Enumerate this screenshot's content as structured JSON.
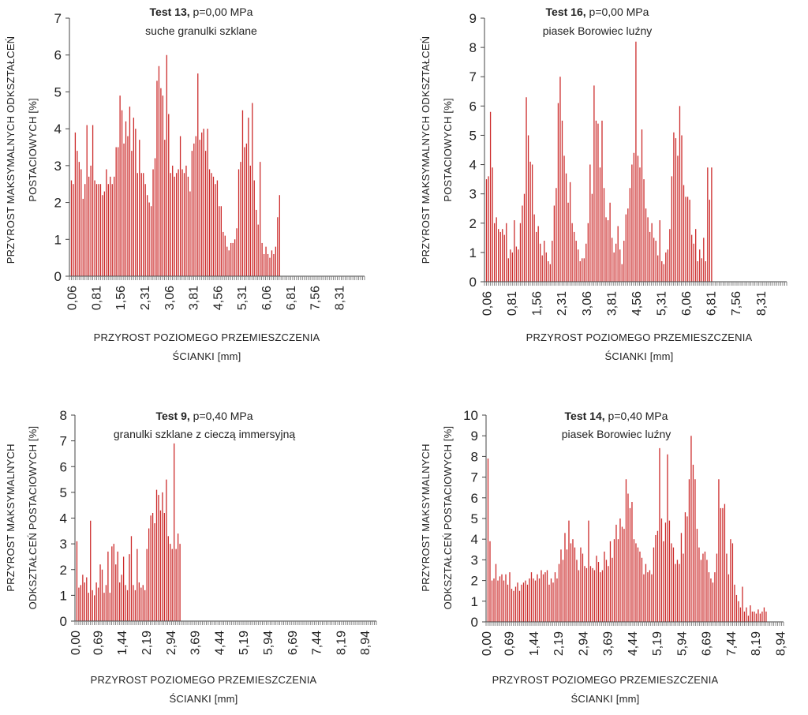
{
  "colors": {
    "bar": "#cc2b2b",
    "axis": "#444444",
    "text": "#222222"
  },
  "chart_data": [
    {
      "type": "bar",
      "title_bold": "Test 13,",
      "title_rest": " p=0,00 MPa",
      "subtitle": "suche granulki szklane",
      "ylabel_lines": [
        "PRZYROST MAKSYMALNYCH ODKSZTAŁCEŃ",
        "POSTACIOWYCH [%]"
      ],
      "xlabel_lines": [
        "PRZYROST POZIOMEGO PRZEMIESZCZENIA",
        "ŚCIANKI [mm]"
      ],
      "ylim": [
        0,
        7
      ],
      "yticks": [
        "0",
        "1",
        "2",
        "3",
        "4",
        "5",
        "6",
        "7"
      ],
      "xlim": [
        0,
        9.1
      ],
      "xtick_values": [
        0.06,
        0.81,
        1.56,
        2.31,
        3.06,
        3.81,
        4.56,
        5.31,
        6.06,
        6.81,
        7.56,
        8.31
      ],
      "xtick_labels": [
        "0,06",
        "0,81",
        "1,56",
        "2,31",
        "3,06",
        "3,81",
        "4,56",
        "5,31",
        "6,06",
        "6,81",
        "7,56",
        "8,31"
      ],
      "x_step": 0.06,
      "values": [
        2.6,
        2.5,
        3.9,
        3.4,
        3.1,
        2.9,
        2.1,
        2.5,
        4.1,
        2.7,
        3.0,
        4.1,
        2.6,
        2.5,
        2.5,
        2.5,
        2.2,
        2.3,
        2.9,
        2.5,
        2.7,
        2.5,
        2.7,
        3.5,
        3.5,
        4.9,
        4.5,
        3.6,
        4.2,
        3.8,
        4.6,
        3.4,
        4.3,
        4.0,
        2.8,
        3.7,
        2.8,
        2.8,
        2.5,
        2.2,
        2.0,
        1.9,
        2.9,
        3.2,
        5.3,
        5.7,
        5.1,
        4.9,
        3.7,
        6.0,
        4.4,
        2.8,
        3.0,
        2.7,
        2.8,
        2.9,
        3.8,
        2.9,
        2.8,
        3.0,
        2.7,
        2.3,
        3.4,
        3.6,
        3.8,
        5.5,
        3.7,
        3.9,
        4.0,
        3.4,
        4.0,
        2.9,
        2.8,
        2.7,
        2.5,
        2.6,
        1.9,
        1.9,
        1.2,
        1.1,
        0.8,
        0.7,
        0.9,
        0.9,
        1.0,
        1.3,
        2.9,
        3.1,
        4.5,
        3.5,
        3.6,
        4.3,
        3.0,
        4.7,
        2.6,
        1.8,
        1.4,
        3.1,
        0.9,
        0.6,
        0.8,
        0.6,
        0.5,
        0.7,
        0.6,
        0.8,
        1.6,
        2.2
      ],
      "n_ticks_total": 152
    },
    {
      "type": "bar",
      "title_bold": "Test 16,",
      "title_rest": " p=0,00 MPa",
      "subtitle": "piasek Borowiec luźny",
      "ylabel_lines": [
        "PRZYROST MAKSYMALNYCH ODKSZTAŁCEŃ",
        "POSTACIOWYCH [%]"
      ],
      "xlabel_lines": [
        "PRZYROST POZIOMEGO PRZEMIESZCZENIA",
        "ŚCIANKI [mm]"
      ],
      "ylim": [
        0,
        9
      ],
      "yticks": [
        "0",
        "1",
        "2",
        "3",
        "4",
        "5",
        "6",
        "7",
        "8",
        "9"
      ],
      "xlim": [
        0,
        9.1
      ],
      "xtick_values": [
        0.06,
        0.81,
        1.56,
        2.31,
        3.06,
        3.81,
        4.56,
        5.31,
        6.06,
        6.81,
        7.56,
        8.31
      ],
      "xtick_labels": [
        "0,06",
        "0,81",
        "1,56",
        "2,31",
        "3,06",
        "3,81",
        "4,56",
        "5,31",
        "6,06",
        "6,81",
        "7,56",
        "8,31"
      ],
      "x_step": 0.06,
      "values": [
        3.5,
        3.6,
        5.8,
        3.9,
        2.0,
        2.2,
        1.8,
        1.7,
        1.8,
        1.6,
        2.0,
        0.8,
        1.1,
        1.0,
        2.1,
        1.2,
        1.1,
        2.0,
        2.6,
        3.0,
        6.3,
        5.0,
        4.1,
        4.0,
        2.3,
        1.7,
        1.9,
        1.3,
        0.9,
        1.4,
        1.0,
        0.7,
        0.6,
        1.4,
        2.6,
        3.2,
        6.1,
        7.0,
        5.5,
        4.3,
        3.7,
        2.7,
        3.4,
        2.0,
        1.7,
        1.4,
        1.1,
        0.7,
        0.8,
        0.8,
        1.3,
        2.0,
        4.0,
        3.0,
        6.7,
        5.5,
        5.4,
        3.9,
        5.5,
        3.2,
        2.2,
        2.1,
        2.7,
        1.5,
        1.0,
        1.3,
        1.9,
        1.1,
        0.6,
        1.4,
        2.3,
        2.5,
        3.2,
        4.0,
        4.4,
        8.2,
        4.3,
        3.9,
        5.2,
        3.5,
        2.5,
        2.2,
        1.7,
        2.0,
        1.5,
        1.4,
        0.9,
        2.1,
        0.7,
        0.6,
        1.0,
        1.1,
        1.8,
        3.6,
        5.1,
        4.9,
        4.3,
        6.0,
        5.0,
        3.3,
        2.9,
        2.9,
        2.8,
        1.6,
        1.3,
        1.8,
        0.7,
        1.1,
        0.8,
        1.5,
        0.7,
        3.9,
        2.8,
        3.9
      ],
      "n_ticks_total": 152
    },
    {
      "type": "bar",
      "title_bold": "Test 9,",
      "title_rest": " p=0,40 MPa",
      "subtitle": "granulki szklane z cieczą immersyjną",
      "ylabel_lines": [
        "PRZYROST MAKSYMALNYCH",
        "ODKSZTAŁCEŃ POSTACIOWYCH [%]"
      ],
      "xlabel_lines": [
        "PRZYROST POZIOMEGO PRZEMIESZCZENIA",
        "ŚCIANKI [mm]"
      ],
      "ylim": [
        0,
        8
      ],
      "yticks": [
        "0",
        "1",
        "2",
        "3",
        "4",
        "5",
        "6",
        "7",
        "8"
      ],
      "xlim": [
        0,
        9.3
      ],
      "xtick_values": [
        0.0,
        0.69,
        1.44,
        2.19,
        2.94,
        3.69,
        4.44,
        5.19,
        5.94,
        6.69,
        7.44,
        8.19,
        8.94
      ],
      "xtick_labels": [
        "0,00",
        "0,69",
        "1,44",
        "2,19",
        "2,94",
        "3,69",
        "4,44",
        "5,19",
        "5,94",
        "6,69",
        "7,44",
        "8,19",
        "8,94"
      ],
      "x_step": 0.06,
      "values": [
        3.1,
        1.3,
        1.4,
        1.8,
        1.5,
        1.7,
        1.1,
        3.9,
        1.2,
        1.0,
        1.5,
        1.3,
        2.2,
        2.0,
        1.1,
        1.4,
        2.7,
        1.1,
        2.9,
        3.0,
        2.2,
        2.7,
        1.5,
        1.8,
        2.5,
        1.4,
        1.2,
        2.6,
        3.3,
        1.4,
        1.2,
        2.8,
        1.5,
        1.3,
        1.4,
        1.2,
        2.8,
        3.6,
        4.1,
        4.2,
        3.8,
        5.1,
        4.9,
        4.3,
        5.0,
        4.2,
        5.5,
        3.3,
        3.0,
        2.8,
        6.9,
        2.8,
        3.4,
        3.0
      ],
      "n_ticks_total": 156
    },
    {
      "type": "bar",
      "title_bold": "Test 14,",
      "title_rest": " p=0,40 MPa",
      "subtitle": "piasek Borowiec luźny",
      "ylabel_lines": [
        "PRZYROST MAKSYMALNYCH",
        "ODKSZTAŁCEŃ POSTACIOWYCH [%]"
      ],
      "xlabel_lines": [
        "PRZYROST POZIOMEGO PRZEMIESZCZENIA",
        "ŚCIANKI [mm]"
      ],
      "ylim": [
        0,
        10
      ],
      "yticks": [
        "0",
        "1",
        "2",
        "3",
        "4",
        "5",
        "6",
        "7",
        "8",
        "9",
        "10"
      ],
      "xlim": [
        0,
        9.05
      ],
      "xtick_values": [
        0.0,
        0.69,
        1.44,
        2.19,
        2.94,
        3.69,
        4.44,
        5.19,
        5.94,
        6.69,
        7.44,
        8.19,
        8.94
      ],
      "xtick_labels": [
        "0,00",
        "0,69",
        "1,44",
        "2,19",
        "2,94",
        "3,69",
        "4,44",
        "5,19",
        "5,94",
        "6,69",
        "7,44",
        "8,19",
        "8,94"
      ],
      "x_step": 0.06,
      "values": [
        7.9,
        3.9,
        2.0,
        2.1,
        2.8,
        2.0,
        2.2,
        2.3,
        2.0,
        2.3,
        1.8,
        2.4,
        1.6,
        1.5,
        1.7,
        1.9,
        1.5,
        1.8,
        1.9,
        2.0,
        1.8,
        2.1,
        2.4,
        2.1,
        2.0,
        2.3,
        2.1,
        2.5,
        2.3,
        2.4,
        2.5,
        1.8,
        2.1,
        1.9,
        2.4,
        2.1,
        2.8,
        3.5,
        3.0,
        4.3,
        3.5,
        4.9,
        3.8,
        4.0,
        3.6,
        3.0,
        2.5,
        3.6,
        3.3,
        2.7,
        2.6,
        4.9,
        2.7,
        2.6,
        2.5,
        3.2,
        2.9,
        2.4,
        2.5,
        3.4,
        3.0,
        2.7,
        3.9,
        3.1,
        4.0,
        4.7,
        4.0,
        5.0,
        4.6,
        4.5,
        6.9,
        6.2,
        5.5,
        5.8,
        4.0,
        3.8,
        3.6,
        3.4,
        3.1,
        2.3,
        2.8,
        2.4,
        2.5,
        2.3,
        3.6,
        4.2,
        4.4,
        8.4,
        5.0,
        3.9,
        4.8,
        8.1,
        4.9,
        3.8,
        3.6,
        2.8,
        3.0,
        2.8,
        4.3,
        3.3,
        5.3,
        5.1,
        6.9,
        9.0,
        7.6,
        6.9,
        4.5,
        3.6,
        3.0,
        3.3,
        3.4,
        3.0,
        2.4,
        2.1,
        1.9,
        2.4,
        3.3,
        6.9,
        5.5,
        5.5,
        5.7,
        3.3,
        2.3,
        4.0,
        3.8,
        1.8,
        1.3,
        1.0,
        0.7,
        1.7,
        0.5,
        0.7,
        0.3,
        0.8,
        0.5,
        0.5,
        0.4,
        0.6,
        0.4,
        0.5,
        0.7,
        0.5
      ],
      "n_ticks_total": 152
    }
  ]
}
